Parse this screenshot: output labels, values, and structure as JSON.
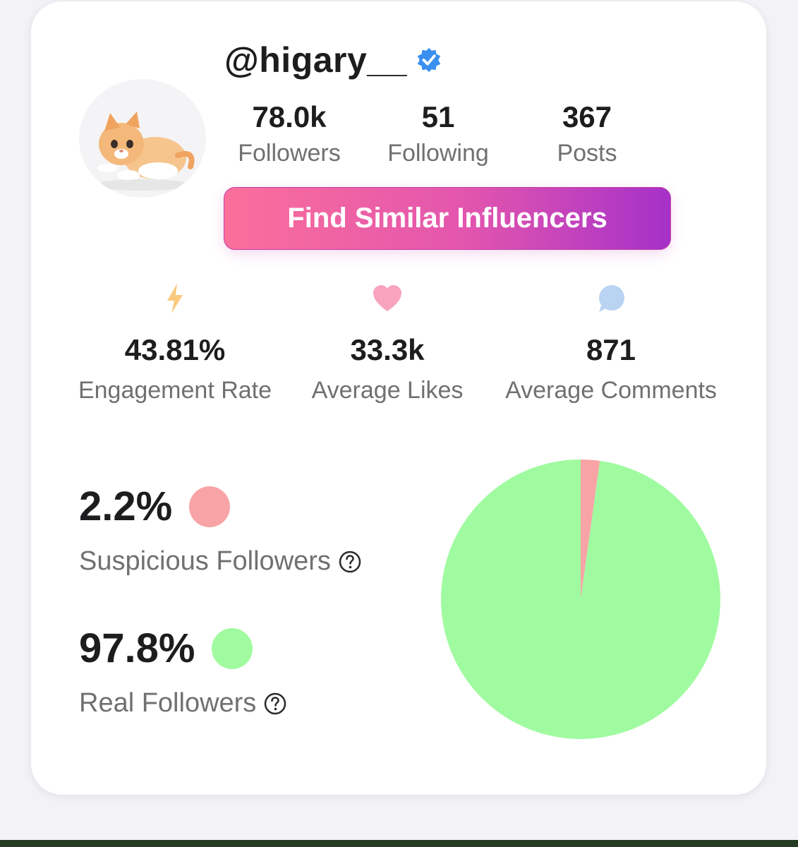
{
  "profile": {
    "username": "@higary__",
    "verified": true,
    "avatar_icon": "kitten-avatar",
    "stats": [
      {
        "value": "78.0k",
        "label": "Followers"
      },
      {
        "value": "51",
        "label": "Following"
      },
      {
        "value": "367",
        "label": "Posts"
      }
    ]
  },
  "cta": {
    "label": "Find Similar Influencers"
  },
  "metrics": [
    {
      "icon": "lightning-icon",
      "value": "43.81%",
      "label": "Engagement Rate",
      "color": "#fbc97e"
    },
    {
      "icon": "heart-icon",
      "value": "33.3k",
      "label": "Average Likes",
      "color": "#f8a4bd"
    },
    {
      "icon": "comment-bubble-icon",
      "value": "871",
      "label": "Average Comments",
      "color": "#b9d4f2"
    }
  ],
  "followers_quality": {
    "suspicious": {
      "value": "2.2%",
      "label": "Suspicious Followers",
      "color": "#f8a4a6"
    },
    "real": {
      "value": "97.8%",
      "label": "Real Followers",
      "color": "#a0fba0"
    }
  },
  "chart_data": {
    "type": "pie",
    "categories": [
      "Suspicious Followers",
      "Real Followers"
    ],
    "values": [
      2.2,
      97.8
    ],
    "colors": [
      "#f8a4a6",
      "#a0fba0"
    ]
  },
  "colors": {
    "verified_badge": "#3a8ff0",
    "cta_gradient": [
      "#fb6f9b",
      "#e255ae",
      "#a531c9"
    ]
  }
}
